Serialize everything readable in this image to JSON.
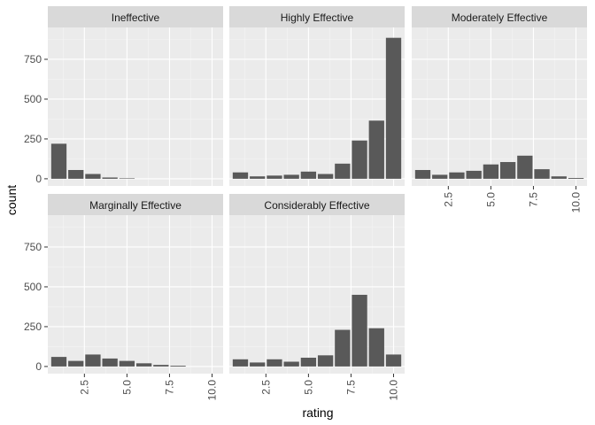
{
  "chart_data": {
    "type": "bar",
    "xlabel": "rating",
    "ylabel": "count",
    "x": [
      1,
      2,
      3,
      4,
      5,
      6,
      7,
      8,
      9,
      10
    ],
    "x_ticks": [
      2.5,
      5.0,
      7.5,
      10.0
    ],
    "x_tick_labels": [
      "2.5",
      "5.0",
      "7.5",
      "10.0"
    ],
    "xlim": [
      0.35,
      10.65
    ],
    "y_ticks": [
      0,
      250,
      500,
      750
    ],
    "y_tick_labels": [
      "0",
      "250",
      "500",
      "750"
    ],
    "ylim": [
      -45,
      950
    ],
    "grid": true,
    "bar_color": "#595959",
    "panel_background": "#EBEBEB",
    "strip_background": "#D9D9D9",
    "facets": [
      {
        "title": "Ineffective",
        "values": [
          220,
          55,
          30,
          8,
          3,
          0,
          0,
          0,
          0,
          0
        ]
      },
      {
        "title": "Highly Effective",
        "values": [
          40,
          15,
          20,
          25,
          45,
          30,
          95,
          240,
          365,
          885
        ]
      },
      {
        "title": "Moderately Effective",
        "values": [
          55,
          25,
          40,
          50,
          90,
          105,
          145,
          60,
          15,
          5
        ]
      },
      {
        "title": "Marginally Effective",
        "values": [
          60,
          35,
          75,
          50,
          35,
          20,
          10,
          5,
          0,
          0
        ]
      },
      {
        "title": "Considerably Effective",
        "values": [
          45,
          25,
          45,
          30,
          55,
          70,
          230,
          450,
          240,
          75
        ]
      }
    ]
  }
}
